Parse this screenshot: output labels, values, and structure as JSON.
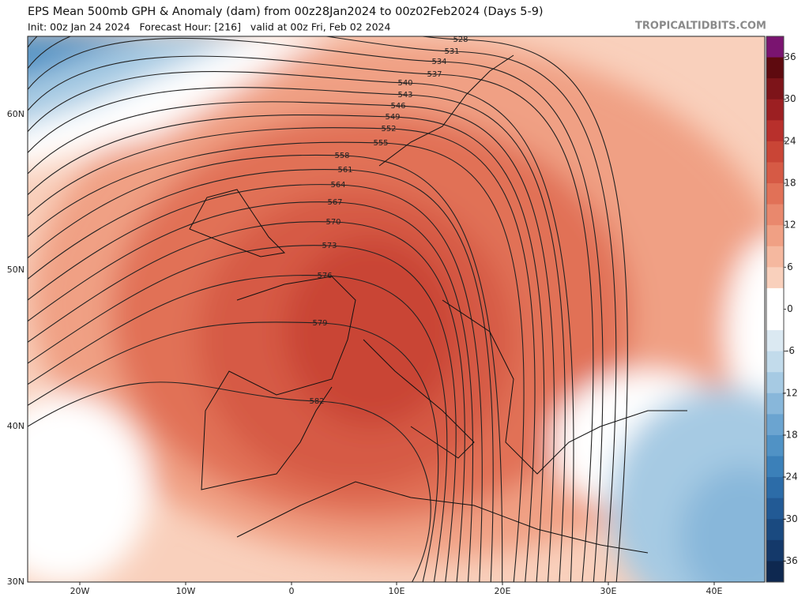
{
  "header": {
    "title": "EPS Mean 500mb GPH & Anomaly (dam) from 00z28Jan2024 to 00z02Feb2024 (Days 5-9)",
    "subtitle": "Init: 00z Jan 24 2024   Forecast Hour: [216]   valid at 00z Fri, Feb 02 2024",
    "site": "TROPICALTIDBITS.COM"
  },
  "map": {
    "lat_labels": [
      "60N",
      "50N",
      "40N",
      "30N"
    ],
    "lon_labels": [
      "20W",
      "10W",
      "0",
      "10E",
      "20E",
      "30E",
      "40E"
    ],
    "contours": [
      528,
      531,
      534,
      537,
      540,
      543,
      546,
      549,
      552,
      555,
      558,
      561,
      564,
      567,
      570,
      573,
      576,
      579,
      582
    ]
  },
  "colorbar": {
    "lim": [
      -39,
      39
    ],
    "ticks": [
      36,
      30,
      24,
      18,
      12,
      6,
      0,
      -6,
      -12,
      -18,
      -24,
      -30,
      -36
    ],
    "colors": [
      "#7a1470",
      "#5e0a0f",
      "#7d1419",
      "#9c1f22",
      "#b8302c",
      "#c94536",
      "#d65a45",
      "#e17157",
      "#e9886d",
      "#f0a084",
      "#f5b89f",
      "#f9d0bc",
      "#ffffff",
      "#ffffff",
      "#dbe9f2",
      "#c2dbeb",
      "#a6cae3",
      "#88b7da",
      "#6ba4d0",
      "#5092c5",
      "#3b80b9",
      "#2c6ca8",
      "#225a95",
      "#1a4a80",
      "#14396a",
      "#0e2850"
    ]
  }
}
